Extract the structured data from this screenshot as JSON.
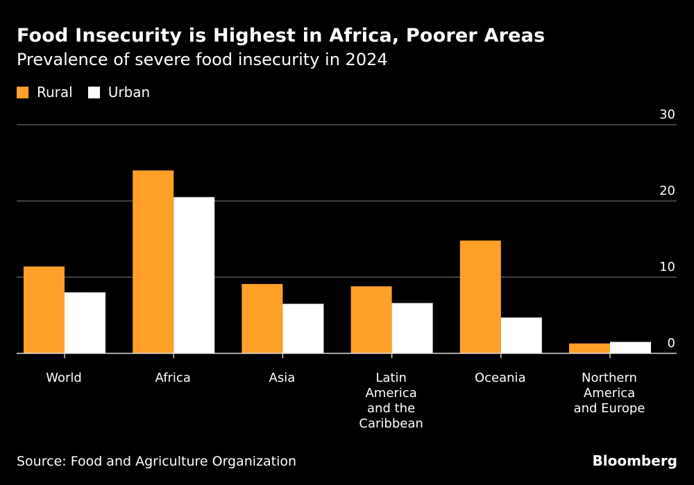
{
  "header": {
    "title": "Food Insecurity is Highest in Africa, Poorer Areas",
    "subtitle": "Prevalence of severe food insecurity in 2024"
  },
  "legend": [
    {
      "label": "Rural",
      "color": "#FFA028"
    },
    {
      "label": "Urban",
      "color": "#FFFFFF"
    }
  ],
  "footer": {
    "source": "Source: Food and Agriculture Organization",
    "brand": "Bloomberg"
  },
  "chart_data": {
    "type": "bar",
    "title": "Food Insecurity is Highest in Africa, Poorer Areas",
    "subtitle": "Prevalence of severe food insecurity in 2024",
    "xlabel": "",
    "ylabel": "",
    "categories": [
      [
        "World"
      ],
      [
        "Africa"
      ],
      [
        "Asia"
      ],
      [
        "Latin",
        "America",
        "and the",
        "Caribbean"
      ],
      [
        "Oceania"
      ],
      [
        "Northern",
        "America",
        "and Europe"
      ]
    ],
    "series": [
      {
        "name": "Rural",
        "color": "#FFA028",
        "values": [
          11.4,
          24.0,
          9.1,
          8.8,
          14.8,
          1.3
        ]
      },
      {
        "name": "Urban",
        "color": "#FFFFFF",
        "values": [
          8.0,
          20.5,
          6.5,
          6.6,
          4.7,
          1.5
        ]
      }
    ],
    "ylim": [
      0,
      30
    ],
    "yticks": [
      0,
      10,
      20,
      30
    ],
    "ytick_side": "right",
    "grid": true,
    "legend_position": "top-left"
  }
}
